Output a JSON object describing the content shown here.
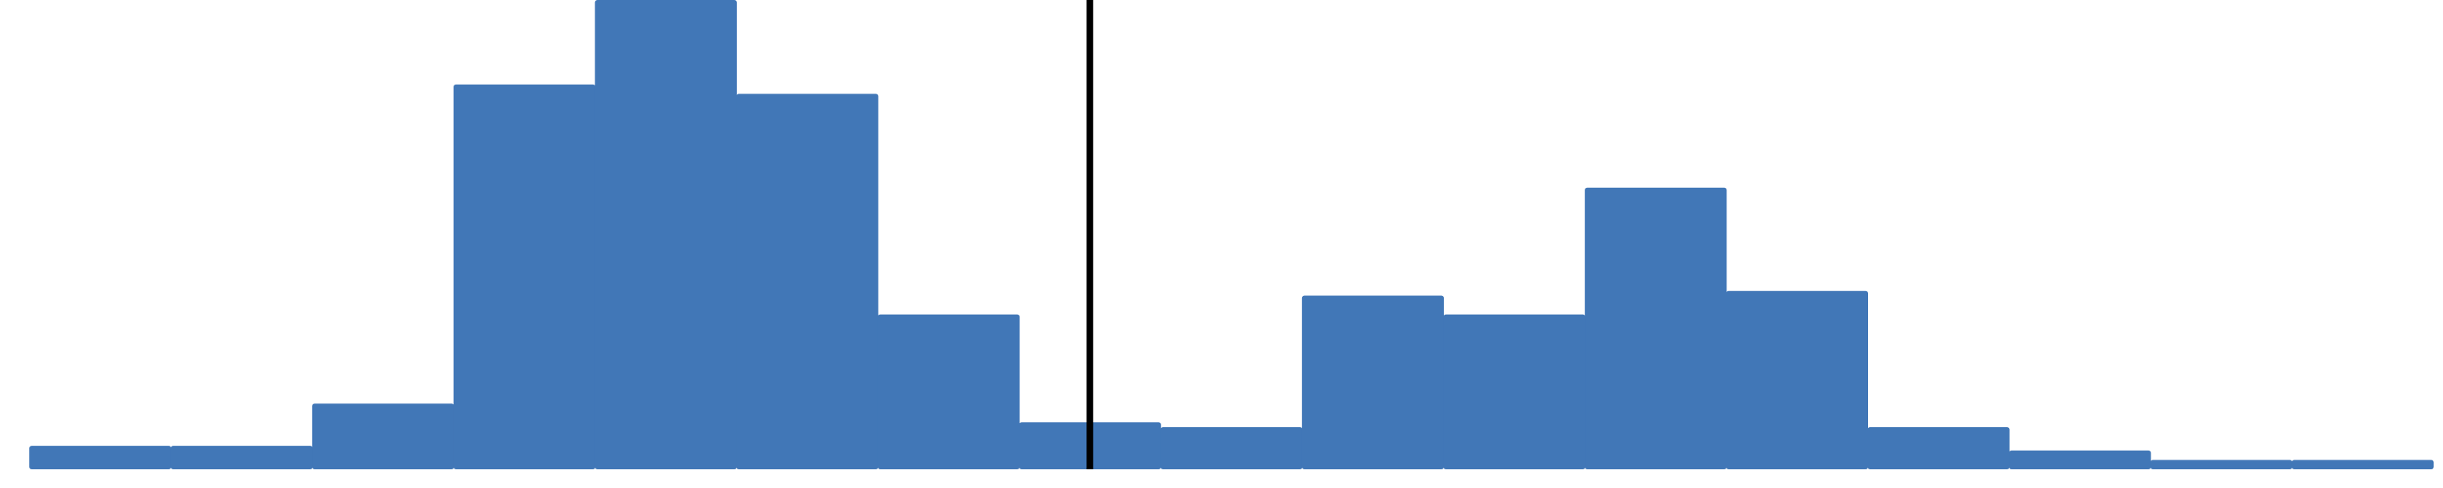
{
  "chart_data": {
    "type": "bar",
    "bar_color": "#4177B7",
    "line_color": "#000000",
    "ylim": [
      0,
      1
    ],
    "values": [
      0.05,
      0.05,
      0.14,
      0.82,
      1.0,
      0.8,
      0.33,
      0.1,
      0.09,
      0.37,
      0.33,
      0.6,
      0.38,
      0.09,
      0.04,
      0.02,
      0.02
    ],
    "vertical_line_index": 7.5,
    "grid": false,
    "legend": "none"
  }
}
